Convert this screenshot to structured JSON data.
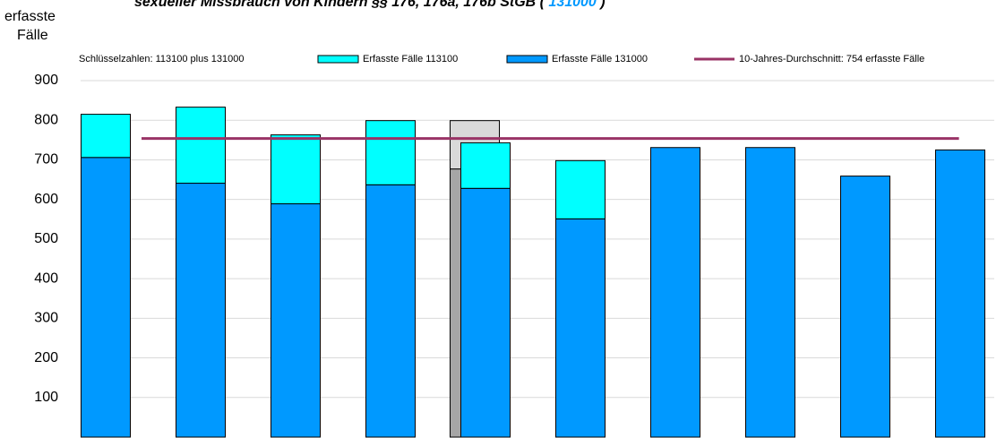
{
  "chart_data": {
    "type": "bar",
    "title": "sexueller Missbrauch von Kindern §§ 176, 176a, 176b StGB (",
    "title_code": "131000",
    "title_end": ")",
    "ylabel": [
      "erfasste",
      "Fälle"
    ],
    "legend_note": "Schlüsselzahlen: 113100 plus 131000",
    "categories": [
      null,
      null,
      null,
      null,
      null,
      null,
      null,
      null,
      null,
      null
    ],
    "series": [
      {
        "name": "Erfasste Fälle 131000",
        "color": "#0099ff",
        "values": [
          706,
          641,
          589,
          637,
          628,
          551,
          731,
          731,
          659,
          725
        ]
      },
      {
        "name": "Erfasste Fälle 113100",
        "color": "#00ffff",
        "values": [
          109,
          192,
          174,
          162,
          115,
          147,
          null,
          null,
          null,
          null
        ]
      },
      {
        "name": "10-Jahres-Durchschnitt: 754 erfasste Fälle",
        "color": "#993366",
        "type": "line",
        "values": [
          754,
          754,
          754,
          754,
          754,
          754,
          754,
          754,
          754,
          754
        ]
      }
    ],
    "highlight_series": [
      {
        "color": "#a6a6a6",
        "values": [
          null,
          null,
          null,
          null,
          677,
          null,
          null,
          null,
          null,
          null
        ]
      },
      {
        "color": "#d9d9d9",
        "values": [
          null,
          null,
          null,
          null,
          122,
          null,
          null,
          null,
          null,
          null
        ]
      }
    ],
    "ylim": [
      0,
      900
    ],
    "yticks": [
      100,
      200,
      300,
      400,
      500,
      600,
      700,
      800,
      900
    ],
    "grid": true
  }
}
